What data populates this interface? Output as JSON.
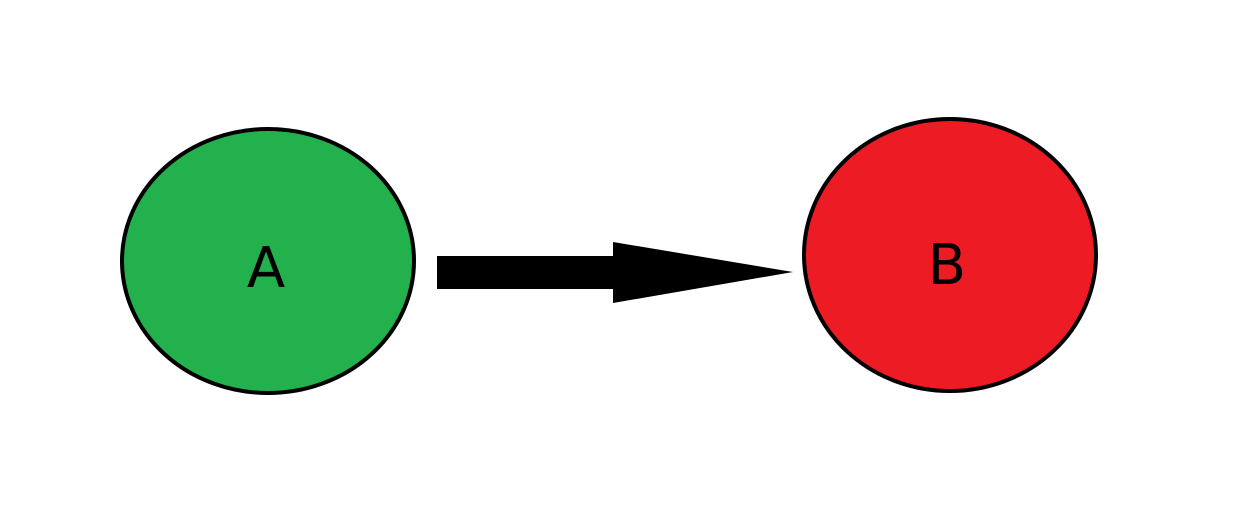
{
  "background": "#ffffff",
  "nodes": [
    {
      "id": "A",
      "label": "A",
      "fill": "#22b14c",
      "stroke": "#000000"
    },
    {
      "id": "B",
      "label": "B",
      "fill": "#ed1c24",
      "stroke": "#000000"
    }
  ],
  "edges": [
    {
      "from": "A",
      "to": "B",
      "color": "#000000"
    }
  ]
}
